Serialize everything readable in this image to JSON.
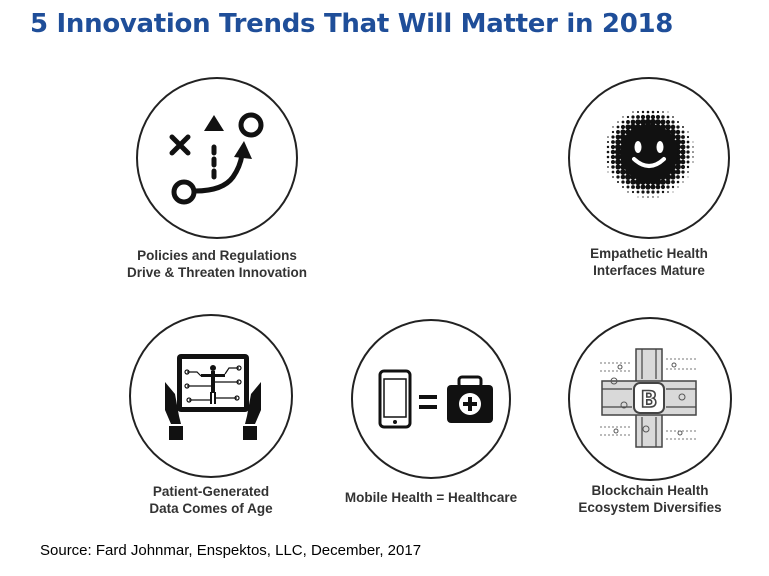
{
  "title": "5 Innovation Trends That Will Matter in 2018",
  "colors": {
    "title": "#1f4e99",
    "icon": "#111111",
    "label": "#333333"
  },
  "trends": [
    {
      "icon": "strategy-play-icon",
      "line1": "Policies and Regulations",
      "line2": "Drive & Threaten Innovation"
    },
    {
      "icon": "smiley-halftone-icon",
      "line1": "Empathetic Health",
      "line2": "Interfaces Mature"
    },
    {
      "icon": "tablet-body-scan-icon",
      "line1": "Patient-Generated",
      "line2": "Data Comes of Age"
    },
    {
      "icon": "phone-equals-medkit-icon",
      "line1": "Mobile Health = Healthcare",
      "line2": ""
    },
    {
      "icon": "blockchain-circuit-icon",
      "line1": "Blockchain Health",
      "line2": "Ecosystem Diversifies"
    }
  ],
  "source": "Source: Fard Johnmar, Enspektos, LLC, December, 2017"
}
